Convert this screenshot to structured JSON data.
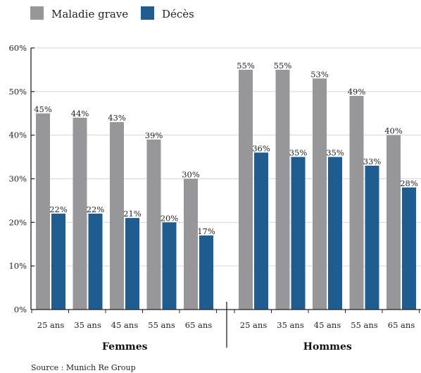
{
  "chart_data": {
    "type": "bar",
    "groups": [
      {
        "label": "Femmes",
        "categories": [
          "25 ans",
          "35 ans",
          "45 ans",
          "55 ans",
          "65 ans"
        ]
      },
      {
        "label": "Hommes",
        "categories": [
          "25 ans",
          "35 ans",
          "45 ans",
          "55 ans",
          "65 ans"
        ]
      }
    ],
    "series": [
      {
        "name": "Maladie grave",
        "color": "#97979a",
        "values": [
          45,
          44,
          43,
          39,
          30,
          55,
          55,
          53,
          49,
          40
        ]
      },
      {
        "name": "Décès",
        "color": "#1f5c8f",
        "values": [
          22,
          22,
          21,
          20,
          17,
          36,
          35,
          35,
          33,
          28
        ]
      }
    ],
    "value_suffix": "%",
    "ylim": [
      0,
      60
    ],
    "yticks": [
      "0%",
      "10%",
      "20%",
      "30%",
      "40%",
      "50%",
      "60%"
    ],
    "grid": true,
    "legend_position": "top-left",
    "xlabel": "",
    "ylabel": "",
    "title": ""
  },
  "source": "Source : Munich Re Group"
}
